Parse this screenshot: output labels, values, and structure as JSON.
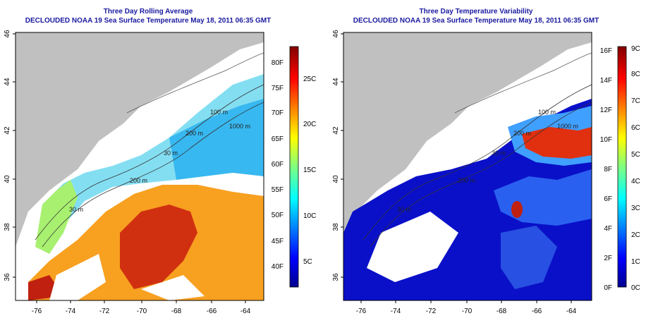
{
  "colors": {
    "title": "#1a1aa0",
    "land": "#c0c0c0",
    "nodata": "#ffffff",
    "contour": "#333333",
    "frame": "#000000"
  },
  "panels": [
    {
      "title": "Three Day Rolling Average",
      "subtitle": "DECLOUDED NOAA 19 Sea Surface Temperature May 18, 2011 06:35 GMT",
      "x_ticks": [
        "-76",
        "-74",
        "-72",
        "-70",
        "-68",
        "-66",
        "-64"
      ],
      "y_ticks": [
        "36",
        "38",
        "40",
        "42",
        "44",
        "46"
      ],
      "contour_labels": [
        "100 m",
        "200 m",
        "1000 m",
        "200 m",
        "30 m",
        "30 m"
      ],
      "colorbar": {
        "palette": "jet",
        "f_labels": [
          "40F",
          "45F",
          "50F",
          "55F",
          "60F",
          "65F",
          "70F",
          "75F",
          "80F"
        ],
        "c_labels": [
          "5C",
          "10C",
          "15C",
          "20C",
          "25C"
        ]
      }
    },
    {
      "title": "Three Day Temperature Variability",
      "subtitle": "DECLOUDED NOAA 19 Sea Surface Temperature May 18, 2011 06:35 GMT",
      "x_ticks": [
        "-76",
        "-74",
        "-72",
        "-70",
        "-68",
        "-66",
        "-64"
      ],
      "y_ticks": [
        "36",
        "38",
        "40",
        "42",
        "44",
        "46"
      ],
      "contour_labels": [
        "100 m",
        "200 m",
        "1000 m",
        "200 m",
        "30 m",
        "30 m"
      ],
      "colorbar": {
        "palette": "jet",
        "f_labels": [
          "0F",
          "2F",
          "4F",
          "6F",
          "8F",
          "10F",
          "12F",
          "14F",
          "16F"
        ],
        "c_labels": [
          "0C",
          "1C",
          "2C",
          "3C",
          "4C",
          "5C",
          "6C",
          "7C",
          "8C",
          "9C"
        ]
      }
    }
  ]
}
